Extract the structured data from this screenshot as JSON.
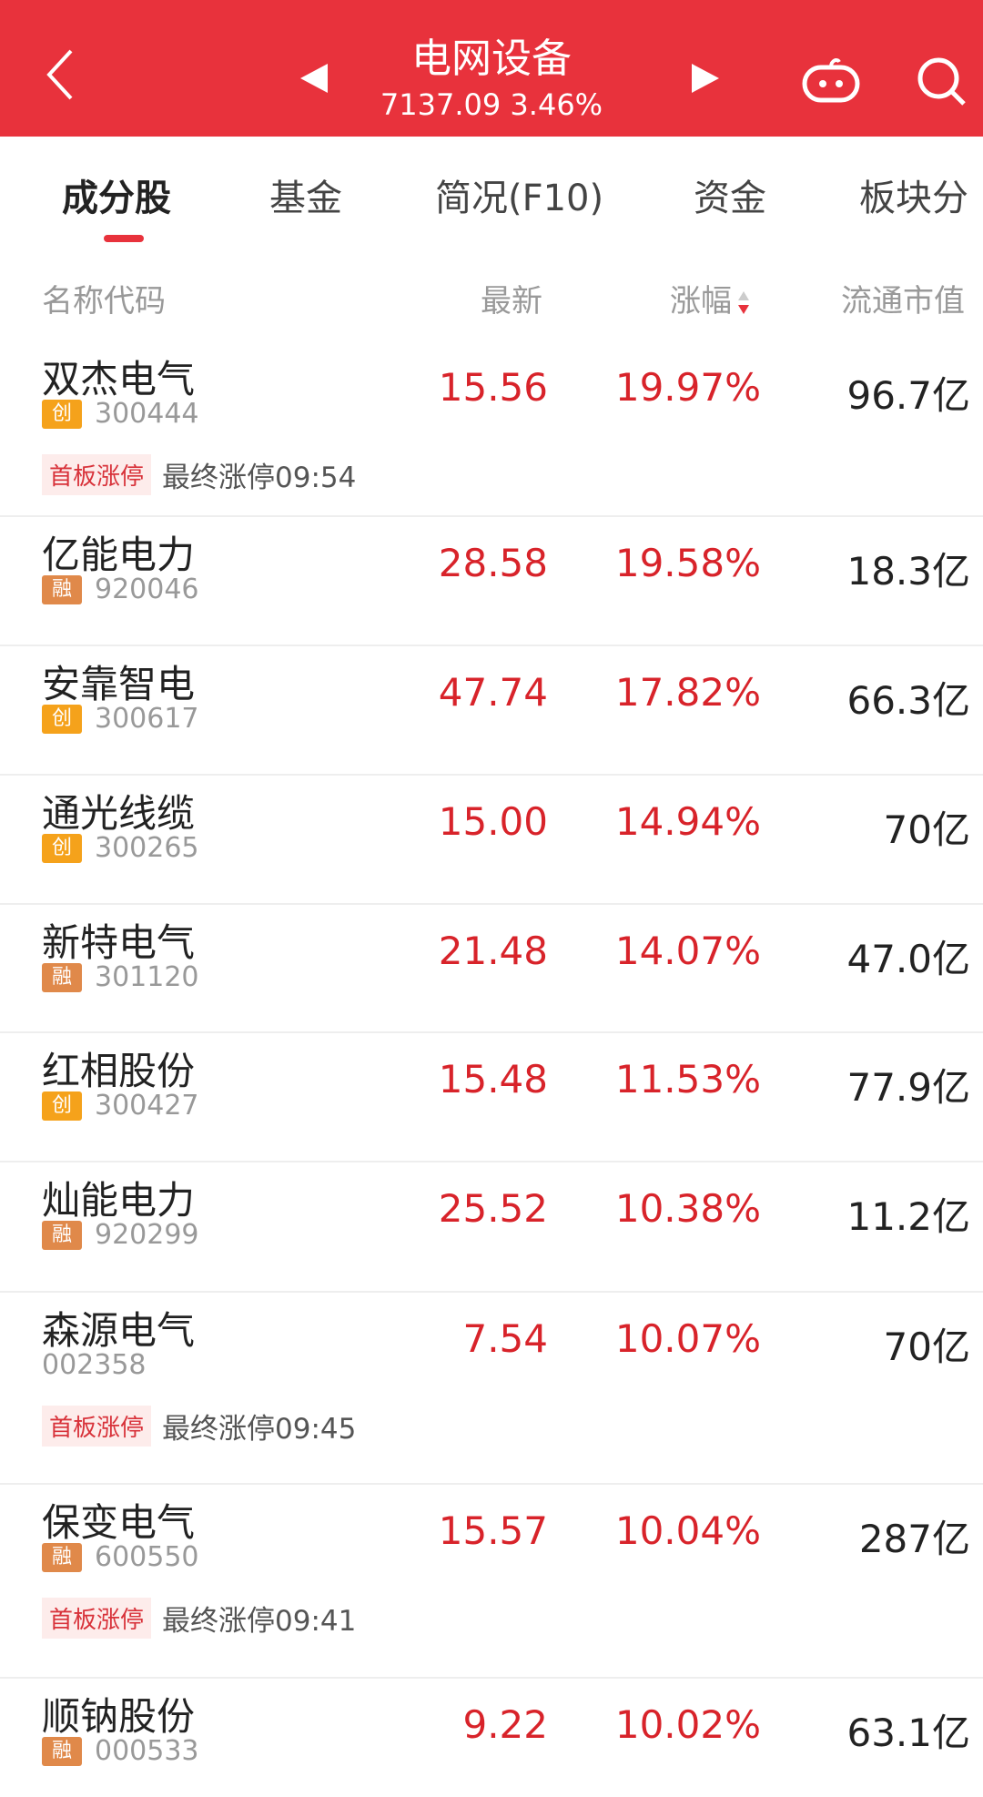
{
  "header": {
    "title": "电网设备",
    "index_value": "7137.09",
    "index_change": "3.46%",
    "accent": "#e8323c"
  },
  "tabs": [
    {
      "label": "成分股",
      "active": true
    },
    {
      "label": "基金"
    },
    {
      "label": "简况(F10)"
    },
    {
      "label": "资金"
    },
    {
      "label": "板块分"
    }
  ],
  "columns": {
    "name": "名称代码",
    "latest": "最新",
    "change": "涨幅",
    "cap": "流通市值"
  },
  "rows": [
    {
      "name": "双杰电气",
      "badge": "创",
      "code": "300444",
      "price": "15.56",
      "pct": "19.97%",
      "cap": "96.7亿",
      "tag": "首板涨停",
      "tag_text": "最终涨停09:54"
    },
    {
      "name": "亿能电力",
      "badge": "融",
      "code": "920046",
      "price": "28.58",
      "pct": "19.58%",
      "cap": "18.3亿"
    },
    {
      "name": "安靠智电",
      "badge": "创",
      "code": "300617",
      "price": "47.74",
      "pct": "17.82%",
      "cap": "66.3亿"
    },
    {
      "name": "通光线缆",
      "badge": "创",
      "code": "300265",
      "price": "15.00",
      "pct": "14.94%",
      "cap": "70亿"
    },
    {
      "name": "新特电气",
      "badge": "融",
      "code": "301120",
      "price": "21.48",
      "pct": "14.07%",
      "cap": "47.0亿"
    },
    {
      "name": "红相股份",
      "badge": "创",
      "code": "300427",
      "price": "15.48",
      "pct": "11.53%",
      "cap": "77.9亿"
    },
    {
      "name": "灿能电力",
      "badge": "融",
      "code": "920299",
      "price": "25.52",
      "pct": "10.38%",
      "cap": "11.2亿"
    },
    {
      "name": "森源电气",
      "badge": "",
      "code": "002358",
      "price": "7.54",
      "pct": "10.07%",
      "cap": "70亿",
      "tag": "首板涨停",
      "tag_text": "最终涨停09:45"
    },
    {
      "name": "保变电气",
      "badge": "融",
      "code": "600550",
      "price": "15.57",
      "pct": "10.04%",
      "cap": "287亿",
      "tag": "首板涨停",
      "tag_text": "最终涨停09:41"
    },
    {
      "name": "顺钠股份",
      "badge": "融",
      "code": "000533",
      "price": "9.22",
      "pct": "10.02%",
      "cap": "63.1亿"
    }
  ]
}
